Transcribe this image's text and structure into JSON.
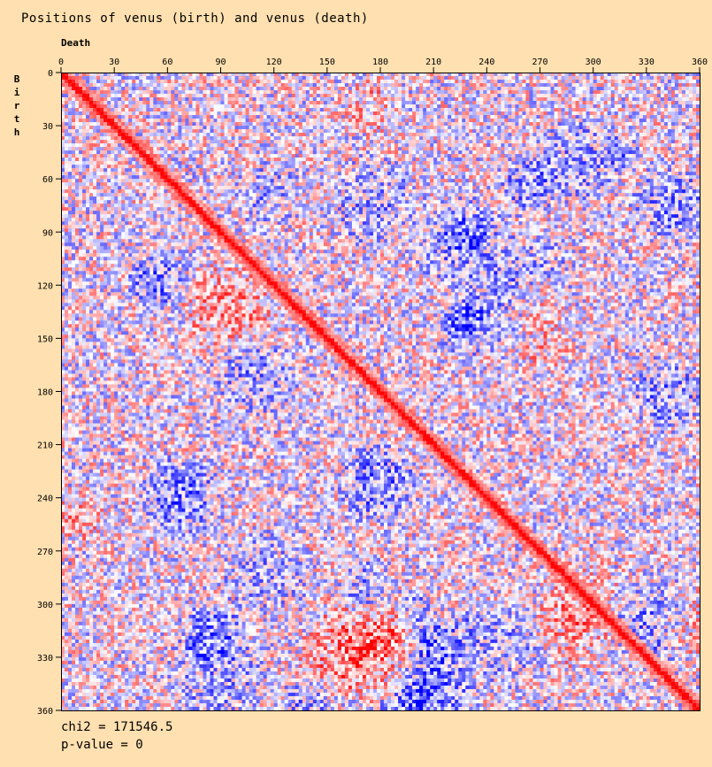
{
  "chart_data": {
    "type": "heatmap",
    "title": "Positions of venus (birth) and venus (death)",
    "xlabel": "Death",
    "ylabel": "Birth",
    "x_ticks": [
      0,
      30,
      60,
      90,
      120,
      150,
      180,
      210,
      240,
      270,
      300,
      330,
      360
    ],
    "y_ticks": [
      0,
      30,
      60,
      90,
      120,
      150,
      180,
      210,
      240,
      270,
      300,
      330,
      360
    ],
    "xlim": [
      0,
      360
    ],
    "ylim": [
      0,
      360
    ],
    "x_axis_position": "top",
    "y_axis_inverted": true,
    "colors": {
      "over": "#ff0000",
      "neutral": "#ffffff",
      "under": "#0000ff",
      "background": "#ffe0b0"
    },
    "feature": "strong red diagonal band where death position equals birth position, noisy red/blue residuals elsewhere",
    "stats": {
      "chi2": "chi2 = 171546.5",
      "pvalue": "p-value = 0"
    }
  }
}
